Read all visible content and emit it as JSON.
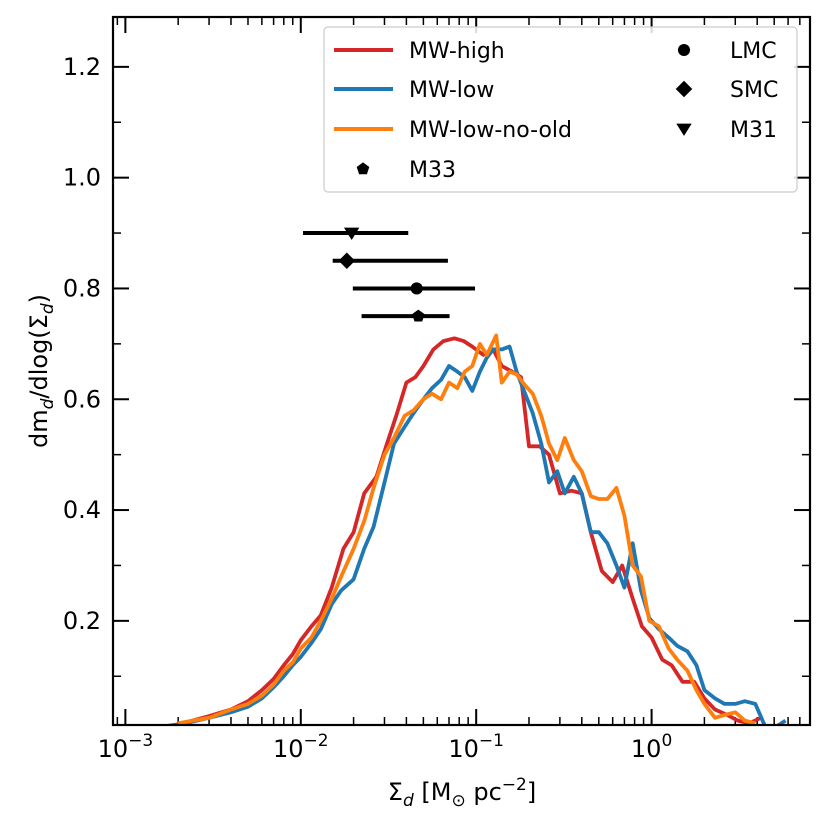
{
  "chart_data": {
    "type": "line",
    "title": "",
    "xlabel": "Σ_d [M_⊙ pc^-2]",
    "ylabel": "dm_d/dlog(Σ_d)",
    "xscale": "log",
    "xlim": [
      0.00085,
      8.0
    ],
    "ylim": [
      0.012,
      1.29
    ],
    "x_ticks": [
      {
        "value": 0.001,
        "base": "10",
        "exp": "−3"
      },
      {
        "value": 0.01,
        "base": "10",
        "exp": "−2"
      },
      {
        "value": 0.1,
        "base": "10",
        "exp": "−1"
      },
      {
        "value": 1.0,
        "base": "10",
        "exp": "0"
      }
    ],
    "y_ticks": [
      {
        "value": 0.2,
        "label": "0.2"
      },
      {
        "value": 0.4,
        "label": "0.4"
      },
      {
        "value": 0.6,
        "label": "0.6"
      },
      {
        "value": 0.8,
        "label": "0.8"
      },
      {
        "value": 1.0,
        "label": "1.0"
      },
      {
        "value": 1.2,
        "label": "1.2"
      }
    ],
    "legend_position": "top-right",
    "series": [
      {
        "name": "MW-high",
        "color": "#d62728",
        "x": [
          0.0013,
          0.002,
          0.003,
          0.004,
          0.005,
          0.006,
          0.007,
          0.008,
          0.009,
          0.01,
          0.0115,
          0.013,
          0.015,
          0.0175,
          0.02,
          0.023,
          0.027,
          0.031,
          0.035,
          0.04,
          0.045,
          0.05,
          0.057,
          0.065,
          0.075,
          0.085,
          0.095,
          0.11,
          0.125,
          0.14,
          0.16,
          0.18,
          0.2,
          0.23,
          0.26,
          0.3,
          0.35,
          0.4,
          0.45,
          0.52,
          0.6,
          0.68,
          0.78,
          0.88,
          1.0,
          1.15,
          1.3,
          1.5,
          1.75,
          2.0,
          2.3,
          2.7,
          3.1,
          3.6,
          4.2
        ],
        "y": [
          0.005,
          0.013,
          0.028,
          0.04,
          0.055,
          0.075,
          0.095,
          0.12,
          0.14,
          0.165,
          0.19,
          0.21,
          0.26,
          0.33,
          0.36,
          0.43,
          0.46,
          0.52,
          0.57,
          0.63,
          0.64,
          0.66,
          0.69,
          0.705,
          0.71,
          0.705,
          0.695,
          0.68,
          0.69,
          0.66,
          0.65,
          0.64,
          0.515,
          0.515,
          0.5,
          0.43,
          0.435,
          0.43,
          0.36,
          0.29,
          0.27,
          0.3,
          0.24,
          0.19,
          0.17,
          0.13,
          0.12,
          0.09,
          0.09,
          0.06,
          0.04,
          0.03,
          0.02,
          0.015,
          0.025
        ]
      },
      {
        "name": "MW-low",
        "color": "#1f77b4",
        "x": [
          0.0012,
          0.002,
          0.003,
          0.004,
          0.005,
          0.006,
          0.007,
          0.008,
          0.009,
          0.01,
          0.0115,
          0.013,
          0.015,
          0.017,
          0.02,
          0.023,
          0.026,
          0.03,
          0.034,
          0.039,
          0.044,
          0.05,
          0.056,
          0.063,
          0.07,
          0.078,
          0.086,
          0.095,
          0.105,
          0.115,
          0.125,
          0.14,
          0.155,
          0.17,
          0.19,
          0.21,
          0.235,
          0.26,
          0.29,
          0.32,
          0.36,
          0.4,
          0.45,
          0.5,
          0.56,
          0.63,
          0.7,
          0.78,
          0.87,
          0.97,
          1.1,
          1.25,
          1.4,
          1.6,
          1.8,
          2.0,
          2.3,
          2.6,
          3.0,
          3.4,
          3.9,
          4.5,
          5.2,
          5.8
        ],
        "y": [
          0.005,
          0.012,
          0.025,
          0.035,
          0.045,
          0.06,
          0.08,
          0.1,
          0.12,
          0.135,
          0.16,
          0.185,
          0.23,
          0.255,
          0.275,
          0.33,
          0.37,
          0.45,
          0.52,
          0.55,
          0.575,
          0.6,
          0.62,
          0.635,
          0.66,
          0.65,
          0.64,
          0.615,
          0.65,
          0.675,
          0.69,
          0.69,
          0.695,
          0.65,
          0.61,
          0.575,
          0.52,
          0.45,
          0.47,
          0.43,
          0.46,
          0.43,
          0.36,
          0.36,
          0.34,
          0.3,
          0.26,
          0.34,
          0.255,
          0.205,
          0.185,
          0.17,
          0.155,
          0.145,
          0.12,
          0.075,
          0.06,
          0.05,
          0.05,
          0.055,
          0.05,
          0.005,
          0.01,
          0.02
        ]
      },
      {
        "name": "MW-low-no-old",
        "color": "#ff7f0e",
        "x": [
          0.002,
          0.003,
          0.004,
          0.005,
          0.006,
          0.007,
          0.008,
          0.009,
          0.01,
          0.0115,
          0.013,
          0.015,
          0.017,
          0.02,
          0.023,
          0.026,
          0.03,
          0.034,
          0.039,
          0.044,
          0.05,
          0.056,
          0.063,
          0.07,
          0.078,
          0.086,
          0.095,
          0.105,
          0.115,
          0.13,
          0.14,
          0.155,
          0.17,
          0.19,
          0.21,
          0.235,
          0.26,
          0.29,
          0.32,
          0.36,
          0.4,
          0.45,
          0.5,
          0.56,
          0.63,
          0.7,
          0.78,
          0.87,
          0.97,
          1.1,
          1.25,
          1.4,
          1.6,
          1.8,
          2.0,
          2.3,
          2.6,
          3.0,
          3.4,
          3.9
        ],
        "y": [
          0.015,
          0.025,
          0.04,
          0.05,
          0.065,
          0.085,
          0.11,
          0.125,
          0.15,
          0.17,
          0.2,
          0.24,
          0.28,
          0.33,
          0.38,
          0.44,
          0.5,
          0.53,
          0.57,
          0.58,
          0.6,
          0.61,
          0.6,
          0.63,
          0.62,
          0.65,
          0.66,
          0.7,
          0.68,
          0.715,
          0.63,
          0.65,
          0.645,
          0.625,
          0.61,
          0.57,
          0.52,
          0.49,
          0.53,
          0.49,
          0.47,
          0.425,
          0.42,
          0.42,
          0.44,
          0.39,
          0.3,
          0.28,
          0.2,
          0.19,
          0.15,
          0.13,
          0.11,
          0.075,
          0.05,
          0.025,
          0.03,
          0.035,
          0.02,
          0.015
        ]
      }
    ],
    "error_bars": [
      {
        "name": "M31",
        "marker": "triangle-down",
        "x": 0.0195,
        "y": 0.9,
        "xmin": 0.0103,
        "xmax": 0.041
      },
      {
        "name": "SMC",
        "marker": "diamond",
        "x": 0.0183,
        "y": 0.85,
        "xmin": 0.0152,
        "xmax": 0.069
      },
      {
        "name": "LMC",
        "marker": "circle",
        "x": 0.0458,
        "y": 0.8,
        "xmin": 0.0198,
        "xmax": 0.0985
      },
      {
        "name": "M33",
        "marker": "pentagon",
        "x": 0.0468,
        "y": 0.75,
        "xmin": 0.0222,
        "xmax": 0.0705
      }
    ],
    "legend": {
      "left": [
        {
          "label": "MW-high",
          "kind": "line",
          "color": "#d62728"
        },
        {
          "label": "MW-low",
          "kind": "line",
          "color": "#1f77b4"
        },
        {
          "label": "MW-low-no-old",
          "kind": "line",
          "color": "#ff7f0e"
        },
        {
          "label": "M33",
          "kind": "marker",
          "marker": "pentagon"
        }
      ],
      "right": [
        {
          "label": "LMC",
          "kind": "marker",
          "marker": "circle"
        },
        {
          "label": "SMC",
          "kind": "marker",
          "marker": "diamond"
        },
        {
          "label": "M31",
          "kind": "marker",
          "marker": "triangle-down"
        }
      ]
    }
  }
}
